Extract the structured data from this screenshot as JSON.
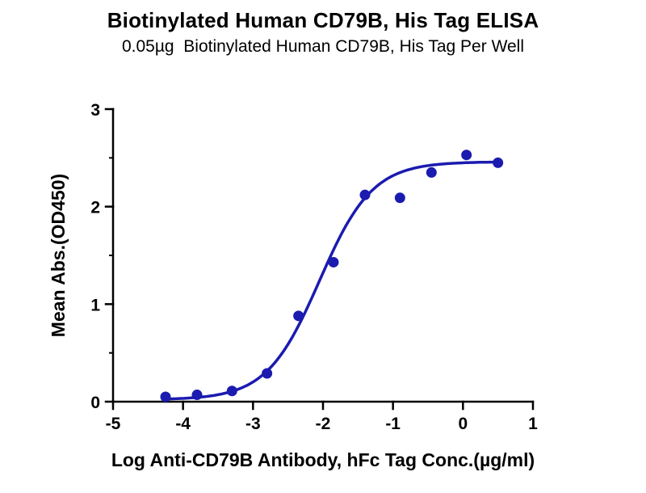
{
  "chart_data": {
    "type": "scatter",
    "title": "Biotinylated Human CD79B, His Tag ELISA",
    "subtitle": "0.05µg  Biotinylated Human CD79B, His Tag Per Well",
    "xlabel": "Log Anti-CD79B Antibody, hFc Tag Conc.(µg/ml)",
    "ylabel": "Mean Abs.(OD450)",
    "xlim": [
      -5,
      1
    ],
    "ylim": [
      0,
      3
    ],
    "x_ticks": [
      -5,
      -4,
      -3,
      -2,
      -1,
      0,
      1
    ],
    "y_ticks": [
      0,
      1,
      2,
      3
    ],
    "y_minor_ticks": [
      0.5,
      1.5,
      2.5
    ],
    "grid": false,
    "legend": "none",
    "points": [
      {
        "x": -4.25,
        "y": 0.05
      },
      {
        "x": -3.8,
        "y": 0.07
      },
      {
        "x": -3.3,
        "y": 0.11
      },
      {
        "x": -2.8,
        "y": 0.29
      },
      {
        "x": -2.35,
        "y": 0.88
      },
      {
        "x": -1.85,
        "y": 1.43
      },
      {
        "x": -1.4,
        "y": 2.12
      },
      {
        "x": -0.9,
        "y": 2.09
      },
      {
        "x": -0.45,
        "y": 2.35
      },
      {
        "x": 0.05,
        "y": 2.53
      },
      {
        "x": 0.5,
        "y": 2.45
      }
    ],
    "fit": {
      "model": "4PL sigmoid",
      "bottom": 0.02,
      "top": 2.46,
      "logEC50": -2.05,
      "hill": 1.15,
      "curve_x_range": [
        -4.3,
        0.55
      ]
    },
    "colors": {
      "curve": "#1b1bb0",
      "points": "#1b1bb0",
      "axis": "#000000",
      "text": "#000000",
      "background": "#ffffff"
    }
  }
}
